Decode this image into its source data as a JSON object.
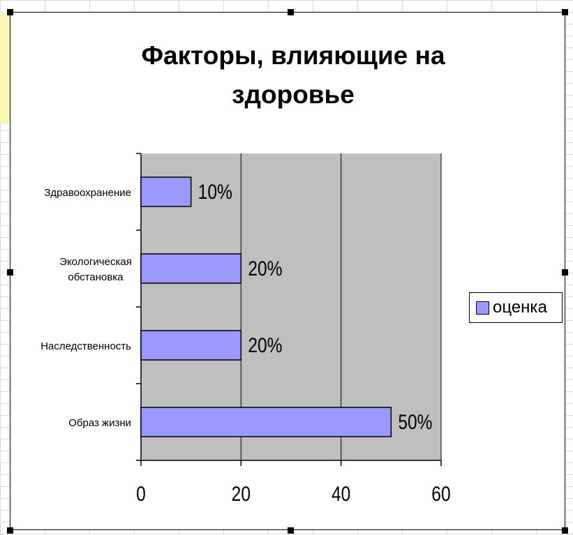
{
  "chart_data": {
    "type": "bar",
    "orientation": "horizontal",
    "title": "Факторы, влияющие на здоровье",
    "categories": [
      "Образ жизни",
      "Наследственность",
      "Экологическая обстановка",
      "Здравоохранение"
    ],
    "category_lines": [
      [
        "Образ жизни"
      ],
      [
        "Наследственность"
      ],
      [
        "Экологическая",
        "обстановка"
      ],
      [
        "Здравоохранение"
      ]
    ],
    "series": [
      {
        "name": "оценка",
        "values": [
          50,
          20,
          20,
          10
        ],
        "data_labels": [
          "50%",
          "20%",
          "20%",
          "10%"
        ]
      }
    ],
    "xlim": [
      0,
      60
    ],
    "xticks": [
      "0",
      "20",
      "40",
      "60"
    ],
    "grid": true,
    "legend": "right",
    "colors": {
      "bar": "#9999ff",
      "plot_background": "#c0bfc0",
      "sheet_highlight": "#fbf6b6"
    }
  }
}
